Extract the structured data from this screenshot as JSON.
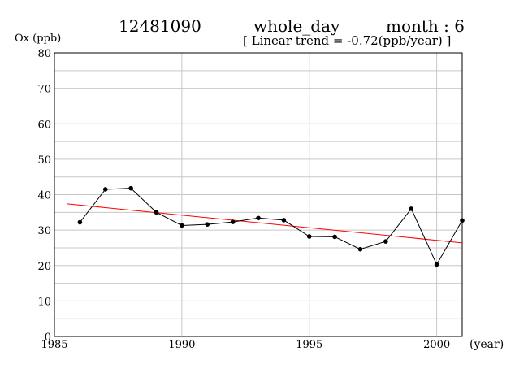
{
  "header": {
    "station": "12481090",
    "period": "whole_day",
    "month_label": "month : 6",
    "trend_label": "[ Linear trend = -0.72(ppb/year) ]"
  },
  "chart_data": {
    "type": "line",
    "title": "",
    "ylabel": "Ox (ppb)",
    "xlabel": "(year)",
    "xlim": [
      1985,
      2001
    ],
    "ylim": [
      0,
      80
    ],
    "x_ticks": [
      1985,
      1990,
      1995,
      2000
    ],
    "y_ticks": [
      0,
      10,
      20,
      30,
      40,
      50,
      60,
      70,
      80
    ],
    "grid": true,
    "series": [
      {
        "x": [
          1986,
          1987,
          1988,
          1989,
          1990,
          1991,
          1992,
          1993,
          1994,
          1995,
          1996,
          1997,
          1998,
          1999,
          2000,
          2001
        ],
        "values": [
          32.2,
          41.5,
          41.8,
          35.0,
          31.3,
          31.6,
          32.3,
          33.4,
          32.8,
          28.2,
          28.1,
          24.6,
          26.8,
          36.0,
          20.3,
          32.7
        ],
        "color": "#000000"
      }
    ],
    "trend": {
      "x": [
        1985.5,
        2001
      ],
      "values": [
        37.4,
        26.4
      ],
      "color": "#ff0000"
    }
  }
}
